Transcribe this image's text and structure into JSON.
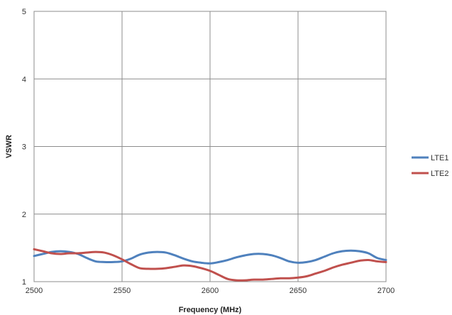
{
  "chart_data": {
    "type": "line",
    "xlabel": "Frequency (MHz)",
    "ylabel": "VSWR",
    "xlim": [
      2500,
      2700
    ],
    "ylim": [
      1,
      5
    ],
    "x_ticks": [
      2500,
      2550,
      2600,
      2650,
      2700
    ],
    "y_ticks": [
      1,
      2,
      3,
      4,
      5
    ],
    "grid": true,
    "legend_position": "right",
    "series": [
      {
        "name": "LTE1",
        "color": "#4f81bd",
        "x": [
          2500,
          2505,
          2510,
          2515,
          2520,
          2525,
          2530,
          2535,
          2540,
          2545,
          2550,
          2555,
          2560,
          2565,
          2570,
          2575,
          2580,
          2585,
          2590,
          2595,
          2600,
          2605,
          2610,
          2615,
          2620,
          2625,
          2630,
          2635,
          2640,
          2645,
          2650,
          2655,
          2660,
          2665,
          2670,
          2675,
          2680,
          2685,
          2690,
          2695,
          2700
        ],
        "y": [
          1.38,
          1.41,
          1.44,
          1.45,
          1.44,
          1.41,
          1.35,
          1.3,
          1.29,
          1.29,
          1.3,
          1.34,
          1.4,
          1.43,
          1.44,
          1.43,
          1.39,
          1.34,
          1.3,
          1.28,
          1.27,
          1.29,
          1.32,
          1.36,
          1.39,
          1.41,
          1.41,
          1.39,
          1.35,
          1.3,
          1.28,
          1.29,
          1.32,
          1.37,
          1.42,
          1.45,
          1.46,
          1.45,
          1.42,
          1.35,
          1.32
        ]
      },
      {
        "name": "LTE2",
        "color": "#c0504d",
        "x": [
          2500,
          2505,
          2510,
          2515,
          2520,
          2525,
          2530,
          2535,
          2540,
          2545,
          2550,
          2555,
          2560,
          2565,
          2570,
          2575,
          2580,
          2585,
          2590,
          2595,
          2600,
          2605,
          2610,
          2615,
          2620,
          2625,
          2630,
          2635,
          2640,
          2645,
          2650,
          2655,
          2660,
          2665,
          2670,
          2675,
          2680,
          2685,
          2690,
          2695,
          2700
        ],
        "y": [
          1.48,
          1.45,
          1.42,
          1.41,
          1.42,
          1.42,
          1.43,
          1.44,
          1.43,
          1.39,
          1.33,
          1.26,
          1.2,
          1.19,
          1.19,
          1.2,
          1.22,
          1.24,
          1.23,
          1.2,
          1.16,
          1.1,
          1.04,
          1.02,
          1.02,
          1.03,
          1.03,
          1.04,
          1.05,
          1.05,
          1.06,
          1.08,
          1.12,
          1.16,
          1.21,
          1.25,
          1.28,
          1.31,
          1.32,
          1.3,
          1.29
        ]
      }
    ]
  }
}
